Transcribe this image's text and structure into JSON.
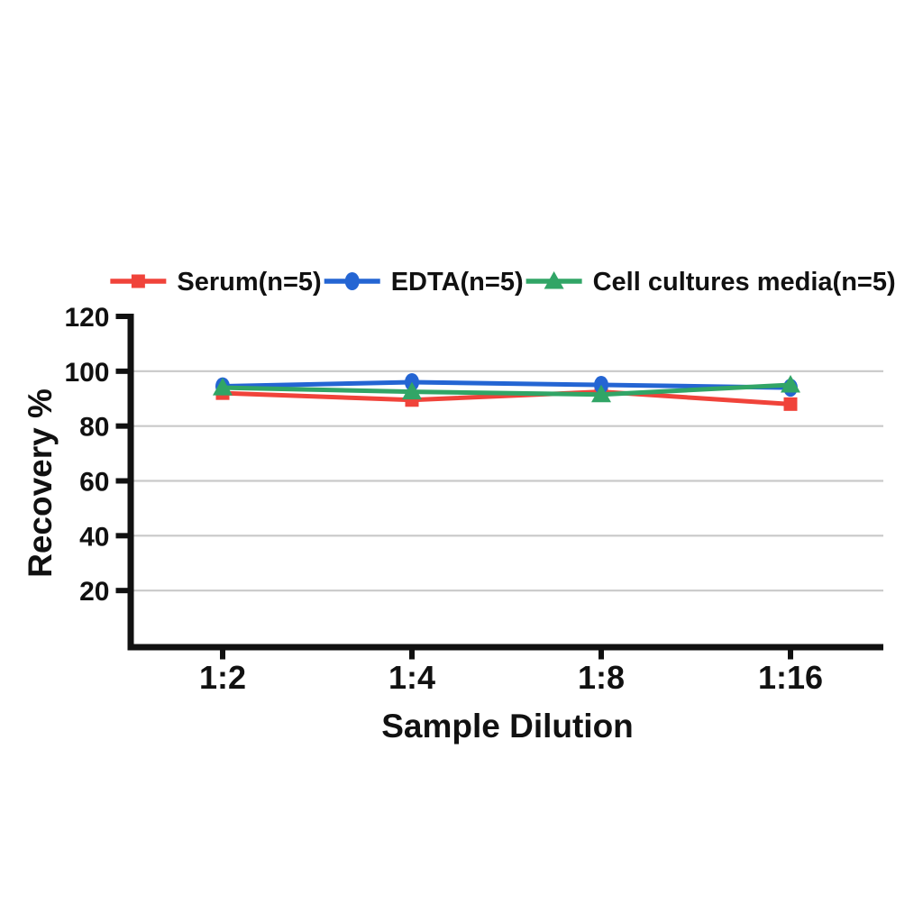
{
  "chart_data": {
    "type": "line",
    "title": "",
    "xlabel": "Sample Dilution",
    "ylabel": "Recovery %",
    "x_categories": [
      "1:2",
      "1:4",
      "1:8",
      "1:16"
    ],
    "series": [
      {
        "name": "Serum(n=5)",
        "marker": "square",
        "color": "#F0433A",
        "values": [
          92,
          89.5,
          92.5,
          88
        ]
      },
      {
        "name": "EDTA(n=5)",
        "marker": "circle",
        "color": "#2465D3",
        "values": [
          94.5,
          96,
          95,
          94
        ]
      },
      {
        "name": "Cell cultures media(n=5)",
        "marker": "triangle",
        "color": "#31A566",
        "values": [
          94,
          92.5,
          91.5,
          95
        ]
      }
    ],
    "ylim": [
      0,
      120
    ],
    "yticks": [
      20,
      40,
      60,
      80,
      100,
      120
    ],
    "gridline_values": [
      20,
      40,
      60,
      80,
      100
    ],
    "grid_on": true,
    "legend_position": "top",
    "colors": {
      "axis": "#111111",
      "grid": "#c9c9c9",
      "text": "#111111",
      "background": "#ffffff"
    }
  }
}
